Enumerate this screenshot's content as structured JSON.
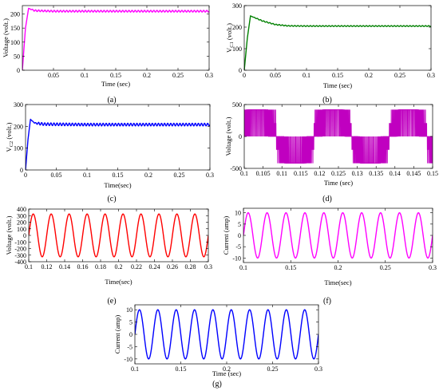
{
  "figure": {
    "panels": [
      {
        "id": "a",
        "caption": "(a)",
        "xlabel": "Time (sec)",
        "ylabel": "Voltage (volt.)",
        "color": "#ff00ff"
      },
      {
        "id": "b",
        "caption": "(b)",
        "xlabel": "Time (sec)",
        "ylabel": "V",
        "ylabel_sub": "C1",
        "ylabel_tail": " (volt.)",
        "color": "#008000"
      },
      {
        "id": "c",
        "caption": "(c)",
        "xlabel": "Time(sec)",
        "ylabel": "V",
        "ylabel_sub": "C2",
        "ylabel_tail": " (volt.)",
        "color": "#0000ff"
      },
      {
        "id": "d",
        "caption": "(d)",
        "xlabel": "Time (sec)",
        "ylabel": "Voltage (volt.)",
        "color": "#c000c0"
      },
      {
        "id": "e",
        "caption": "(e)",
        "xlabel": "Time(sec)",
        "ylabel": "Voltage (volt.)",
        "color": "#ff0000"
      },
      {
        "id": "f",
        "caption": "(f)",
        "xlabel": "Time(sec)",
        "ylabel": "Current (amp)",
        "color": "#ff00ff"
      },
      {
        "id": "g",
        "caption": "(g)",
        "xlabel": "Time (sec)",
        "ylabel": "Current (amp)",
        "color": "#0000ff"
      }
    ]
  },
  "chart_data": [
    {
      "id": "a",
      "type": "line",
      "xlabel": "Time (sec)",
      "ylabel": "Voltage (volt.)",
      "xlim": [
        0,
        0.3
      ],
      "ylim": [
        0,
        230
      ],
      "xticks": [
        0.05,
        0.1,
        0.15,
        0.2,
        0.25,
        0.3
      ],
      "xtick_labels": [
        "0.05",
        "0.1",
        "0.15",
        "0.2",
        "0.25",
        "0.3"
      ],
      "yticks": [
        0,
        50,
        100,
        150,
        200
      ],
      "ytick_labels": [
        "0",
        "50",
        "100",
        "150",
        "200"
      ],
      "series": [
        {
          "color": "#ff00ff",
          "description": "rises to about 220 by t≈0.008 s then oscillates with a small ripple around 210",
          "x": [
            0,
            0.005,
            0.01,
            0.02,
            0.05,
            0.1,
            0.15,
            0.2,
            0.25,
            0.3
          ],
          "y": [
            0,
            150,
            220,
            212,
            210,
            210,
            210,
            210,
            210,
            210
          ]
        }
      ],
      "ripple": {
        "steady_value": 210,
        "amplitude": 3,
        "cycles": 30,
        "start": 0.01
      }
    },
    {
      "id": "b",
      "type": "line",
      "xlabel": "Time (sec)",
      "ylabel": "VC1 (volt.)",
      "xlim": [
        0,
        0.3
      ],
      "ylim": [
        0,
        300
      ],
      "xticks": [
        0,
        0.05,
        0.1,
        0.15,
        0.2,
        0.25,
        0.3
      ],
      "xtick_labels": [
        "0",
        "0.05",
        "0.1",
        "0.15",
        "0.2",
        "0.25",
        "0.3"
      ],
      "yticks": [
        0,
        100,
        200,
        300
      ],
      "ytick_labels": [
        "0",
        "100",
        "200",
        "300"
      ],
      "series": [
        {
          "color": "#008000",
          "description": "peaks at about 252 near t≈0.01 s and settles to about 205 by t≈0.07 s",
          "x": [
            0,
            0.005,
            0.01,
            0.02,
            0.03,
            0.05,
            0.07,
            0.1,
            0.2,
            0.3
          ],
          "y": [
            0,
            150,
            252,
            240,
            228,
            212,
            206,
            205,
            205,
            205
          ]
        }
      ],
      "ripple": {
        "steady_value": 205,
        "amplitude": 2,
        "cycles": 30,
        "start": 0.012
      }
    },
    {
      "id": "c",
      "type": "line",
      "xlabel": "Time(sec)",
      "ylabel": "VC2 (volt.)",
      "xlim": [
        0,
        0.3
      ],
      "ylim": [
        0,
        300
      ],
      "xticks": [
        0,
        0.05,
        0.1,
        0.15,
        0.2,
        0.25,
        0.3
      ],
      "xtick_labels": [
        "0",
        "0.05",
        "0.1",
        "0.15",
        "0.2",
        "0.25",
        "0.3"
      ],
      "yticks": [
        0,
        100,
        200,
        300
      ],
      "ytick_labels": [
        "0",
        "100",
        "200",
        "300"
      ],
      "series": [
        {
          "color": "#0000ff",
          "description": "peaks at about 232 near t≈0.008 s then oscillates around 208",
          "x": [
            0,
            0.004,
            0.008,
            0.015,
            0.03,
            0.1,
            0.2,
            0.3
          ],
          "y": [
            0,
            140,
            232,
            215,
            210,
            208,
            208,
            208
          ]
        }
      ],
      "ripple": {
        "steady_value": 208,
        "amplitude": 6,
        "cycles": 30,
        "start": 0.012
      }
    },
    {
      "id": "d",
      "type": "line",
      "xlabel": "Time (sec)",
      "ylabel": "Voltage (volt.)",
      "xlim": [
        0.1,
        0.15
      ],
      "ylim": [
        -500,
        500
      ],
      "xticks": [
        0.1,
        0.105,
        0.11,
        0.115,
        0.12,
        0.125,
        0.13,
        0.135,
        0.14,
        0.145,
        0.15
      ],
      "xtick_labels": [
        "0.1",
        "0.105",
        "0.11",
        "0.115",
        "0.12",
        "0.125",
        "0.13",
        "0.135",
        "0.14",
        "0.145",
        "0.15"
      ],
      "yticks": [
        -500,
        0,
        500
      ],
      "ytick_labels": [
        "-500",
        "0",
        "500"
      ],
      "series": [
        {
          "color": "#c000c0",
          "description": "multilevel PWM inverter output switching between about -420 and +420 V, period 0.02 s",
          "levels": [
            -420,
            0,
            420
          ],
          "period": 0.02
        }
      ]
    },
    {
      "id": "e",
      "type": "line",
      "xlabel": "Time(sec)",
      "ylabel": "Voltage (volt.)",
      "xlim": [
        0.1,
        0.3
      ],
      "ylim": [
        -400,
        400
      ],
      "xticks": [
        0.1,
        0.12,
        0.14,
        0.16,
        0.18,
        0.2,
        0.22,
        0.24,
        0.26,
        0.28,
        0.3
      ],
      "xtick_labels": [
        "0.1",
        "0.12",
        "0.14",
        "0.16",
        "0.18",
        "0.2",
        "0.22",
        "0.24",
        "0.26",
        "0.28",
        "0.3"
      ],
      "yticks": [
        -400,
        -300,
        -200,
        -100,
        0,
        100,
        200,
        300,
        400
      ],
      "ytick_labels": [
        "-400",
        "-300",
        "-200",
        "-100",
        "0",
        "100",
        "200",
        "300",
        "400"
      ],
      "series": [
        {
          "color": "#ff0000",
          "shape": "sine",
          "amplitude": 325,
          "frequency_hz": 50,
          "phase_start": 0.1
        }
      ]
    },
    {
      "id": "f",
      "type": "line",
      "xlabel": "Time(sec)",
      "ylabel": "Current (amp)",
      "xlim": [
        0.1,
        0.3
      ],
      "ylim": [
        -12,
        12
      ],
      "xticks": [
        0.1,
        0.15,
        0.2,
        0.25,
        0.3
      ],
      "xtick_labels": [
        "0.1",
        "0.15",
        "0.2",
        "0.25",
        "0.3"
      ],
      "yticks": [
        -10,
        -5,
        0,
        5,
        10
      ],
      "ytick_labels": [
        "-10",
        "-5",
        "0",
        "5",
        "10"
      ],
      "series": [
        {
          "color": "#ff00ff",
          "shape": "sine",
          "amplitude": 10,
          "frequency_hz": 50,
          "phase_start": 0.1
        }
      ]
    },
    {
      "id": "g",
      "type": "line",
      "xlabel": "Time (sec)",
      "ylabel": "Current (amp)",
      "xlim": [
        0.1,
        0.3
      ],
      "ylim": [
        -12,
        12
      ],
      "xticks": [
        0.1,
        0.15,
        0.2,
        0.25,
        0.3
      ],
      "xtick_labels": [
        "0.1",
        "0.15",
        "0.2",
        "0.25",
        "0.3"
      ],
      "yticks": [
        -10,
        -5,
        0,
        5,
        10
      ],
      "ytick_labels": [
        "-10",
        "-5",
        "0",
        "5",
        "10"
      ],
      "series": [
        {
          "color": "#0000ff",
          "shape": "sine",
          "amplitude": 10,
          "frequency_hz": 50,
          "phase_start": 0.1
        }
      ]
    }
  ]
}
